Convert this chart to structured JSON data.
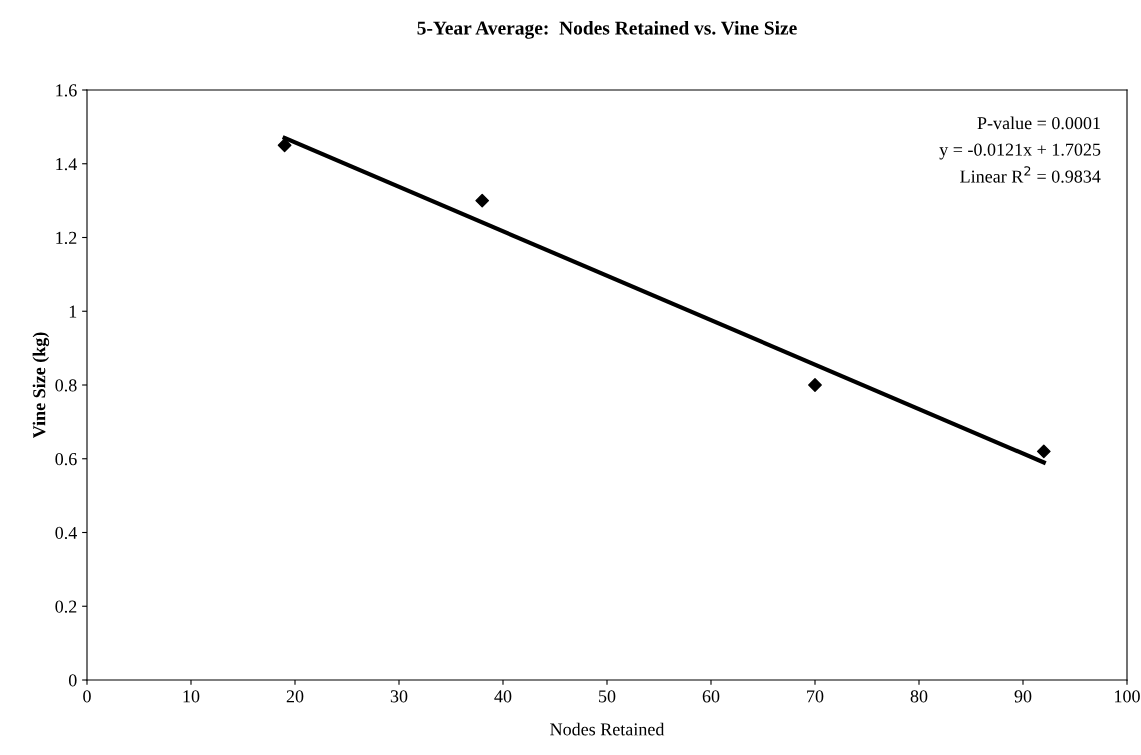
{
  "chart_data": {
    "type": "scatter",
    "title": "5-Year Average:  Nodes Retained vs. Vine Size",
    "xlabel": "Nodes Retained",
    "ylabel": "Vine Size (kg)",
    "x": [
      19,
      38,
      70,
      92
    ],
    "series": [
      {
        "color": "#000000",
        "values": [
          1.45,
          1.3,
          0.8,
          0.62
        ],
        "marker": "diamond"
      },
      {
        "type": "line",
        "color": "#000000",
        "x": [
          19,
          92
        ],
        "values": [
          1.47,
          0.59
        ],
        "marker": "none",
        "line_style": "solid"
      }
    ],
    "xlim": [
      0,
      100
    ],
    "xticks": [
      0,
      10,
      20,
      30,
      40,
      50,
      60,
      70,
      80,
      90,
      100
    ],
    "ylim": [
      0,
      1.6
    ],
    "yticks": [
      0,
      0.2,
      0.4,
      0.6,
      0.8,
      1,
      1.2,
      1.4,
      1.6
    ],
    "grid": false,
    "legend": false,
    "annotations": [
      "P-value = 0.0001",
      "y = -0.0121x + 1.7025",
      "Linear R$^{2}$ = 0.9834"
    ]
  }
}
